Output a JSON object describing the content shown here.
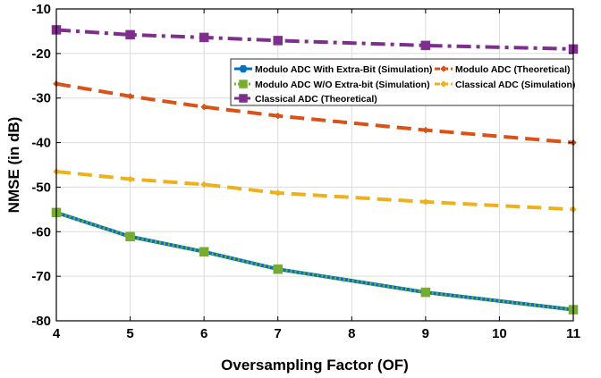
{
  "chart_data": {
    "type": "line",
    "title": "",
    "xlabel": "Oversampling Factor (OF)",
    "ylabel": "NMSE (in dB)",
    "xlim": [
      4,
      11
    ],
    "ylim": [
      -80,
      -10
    ],
    "xticks": [
      4,
      5,
      6,
      7,
      8,
      9,
      10,
      11
    ],
    "yticks": [
      -10,
      -20,
      -30,
      -40,
      -50,
      -60,
      -70,
      -80
    ],
    "grid": true,
    "legend_position": "top-right",
    "x": [
      4,
      5,
      6,
      7,
      9,
      11
    ],
    "series": [
      {
        "name": "Modulo ADC With Extra-Bit (Simulation)",
        "values": [
          -55.7,
          -61.1,
          -64.5,
          -68.4,
          -73.6,
          -77.5
        ],
        "color": "#0072BD",
        "dash": "solid",
        "marker": "hexagon"
      },
      {
        "name": "Modulo ADC (Theoretical)",
        "values": [
          -26.8,
          -29.6,
          -32.0,
          -34.0,
          -37.2,
          -40.0
        ],
        "color": "#D95319",
        "dash": "dash",
        "marker": "diamond"
      },
      {
        "name": "Modulo ADC W/O Extra-bit (Simulation)",
        "values": [
          -55.7,
          -61.1,
          -64.5,
          -68.4,
          -73.6,
          -77.5
        ],
        "color": "#77AC30",
        "dash": "dot",
        "marker": "square"
      },
      {
        "name": "Classical ADC (Simulation)",
        "values": [
          -46.5,
          -48.2,
          -49.4,
          -51.3,
          -53.3,
          -55.0
        ],
        "color": "#EDB120",
        "dash": "dash",
        "marker": "diamond"
      },
      {
        "name": "Classical ADC (Theoretical)",
        "values": [
          -14.7,
          -15.8,
          -16.4,
          -17.1,
          -18.2,
          -19.0
        ],
        "color": "#7E2F8E",
        "dash": "dashdot",
        "marker": "square"
      }
    ]
  }
}
